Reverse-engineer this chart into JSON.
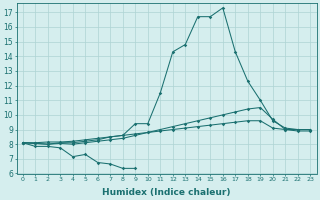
{
  "xlabel": "Humidex (Indice chaleur)",
  "xlim": [
    -0.5,
    23.5
  ],
  "ylim": [
    6,
    17.6
  ],
  "yticks": [
    6,
    7,
    8,
    9,
    10,
    11,
    12,
    13,
    14,
    15,
    16,
    17
  ],
  "xticks": [
    0,
    1,
    2,
    3,
    4,
    5,
    6,
    7,
    8,
    9,
    10,
    11,
    12,
    13,
    14,
    15,
    16,
    17,
    18,
    19,
    20,
    21,
    22,
    23
  ],
  "background_color": "#d5eeee",
  "grid_color": "#aed4d4",
  "line_color": "#1a7070",
  "line_min": [
    8.1,
    7.85,
    7.85,
    7.75,
    7.15,
    7.3,
    6.75,
    6.65,
    6.35,
    6.35
  ],
  "line_flat": [
    8.1,
    8.1,
    8.15,
    8.15,
    8.2,
    8.3,
    8.4,
    8.5,
    8.6,
    8.7,
    8.8,
    8.9,
    9.0,
    9.1,
    9.2,
    9.3,
    9.4,
    9.5,
    9.6,
    9.6,
    9.1,
    9.0,
    8.9,
    8.9
  ],
  "line_peak": [
    8.1,
    8.05,
    8.0,
    8.1,
    8.1,
    8.2,
    8.3,
    8.5,
    8.6,
    9.4,
    9.4,
    11.5,
    14.3,
    14.8,
    16.7,
    16.7,
    17.3,
    14.3,
    12.3,
    11.0,
    9.6,
    9.1,
    9.0,
    9.0
  ],
  "line_rise": [
    8.1,
    8.05,
    8.0,
    8.05,
    8.0,
    8.1,
    8.2,
    8.3,
    8.4,
    8.6,
    8.8,
    9.0,
    9.2,
    9.4,
    9.6,
    9.8,
    10.0,
    10.2,
    10.4,
    10.5,
    9.7,
    9.0,
    9.0,
    9.0
  ]
}
